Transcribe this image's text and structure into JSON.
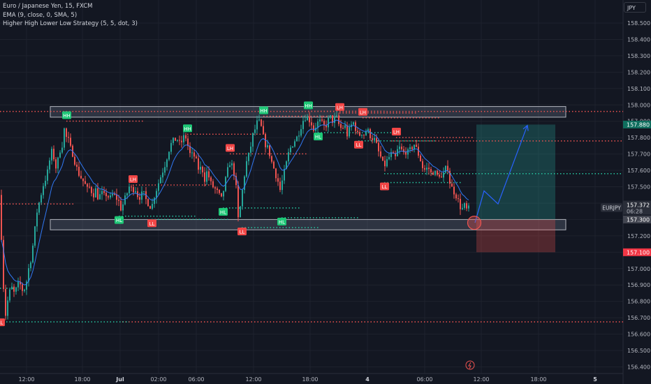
{
  "header": {
    "symbol_title": "Euro / Japanese Yen, 15, FXCM",
    "indicator_1": "EMA (9, close, 0, SMA, 5)",
    "indicator_2": "Higher High Lower Low Strategy (5, 5, dot, 3)",
    "currency_button": "JPY"
  },
  "colors": {
    "background": "#131722",
    "up_candle": "#26a69a",
    "down_candle": "#ef5350",
    "ema": "#3179f5",
    "accent_blue": "#2962ff",
    "label_green": "#1ec776",
    "label_red": "#f24646"
  },
  "chart_data": {
    "type": "candlestick",
    "symbol": "EURJPY",
    "y_axis": {
      "ticks": [
        156.4,
        156.5,
        156.6,
        156.7,
        156.8,
        156.9,
        157.0,
        157.1,
        157.2,
        157.3,
        157.4,
        157.5,
        157.6,
        157.7,
        157.8,
        157.9,
        158.0,
        158.1,
        158.2,
        158.3,
        158.4,
        158.5
      ],
      "tick_labels": [
        "156.400",
        "156.500",
        "156.600",
        "156.700",
        "156.800",
        "156.900",
        "157.000",
        "157.100",
        "157.200",
        "157.300",
        "157.400",
        "157.500",
        "157.600",
        "157.700",
        "157.800",
        "157.900",
        "158.000",
        "158.100",
        "158.200",
        "158.300",
        "158.400",
        "158.500"
      ],
      "range": [
        156.37,
        158.57
      ]
    },
    "x_axis": {
      "tick_labels": [
        "12:00",
        "18:00",
        "Jul",
        "02:00",
        "06:00",
        "12:00",
        "18:00",
        "4",
        "06:00",
        "12:00",
        "18:00",
        "5"
      ]
    },
    "price_series_path": [
      [
        0,
        157.45
      ],
      [
        2,
        157.2
      ],
      [
        4,
        156.95
      ],
      [
        6,
        156.83
      ],
      [
        8,
        156.72
      ],
      [
        10,
        156.78
      ],
      [
        13,
        156.85
      ],
      [
        17,
        156.88
      ],
      [
        21,
        156.84
      ],
      [
        25,
        156.9
      ],
      [
        29,
        156.9
      ],
      [
        33,
        156.86
      ],
      [
        37,
        156.9
      ],
      [
        41,
        157.0
      ],
      [
        45,
        157.08
      ],
      [
        49,
        157.2
      ],
      [
        53,
        157.35
      ],
      [
        57,
        157.42
      ],
      [
        61,
        157.5
      ],
      [
        65,
        157.55
      ],
      [
        69,
        157.6
      ],
      [
        73,
        157.72
      ],
      [
        77,
        157.68
      ],
      [
        81,
        157.6
      ],
      [
        85,
        157.72
      ],
      [
        89,
        157.76
      ],
      [
        92,
        157.85
      ],
      [
        95,
        157.8
      ],
      [
        98,
        157.78
      ],
      [
        101,
        157.73
      ],
      [
        105,
        157.7
      ],
      [
        109,
        157.62
      ],
      [
        113,
        157.58
      ],
      [
        117,
        157.55
      ],
      [
        121,
        157.52
      ],
      [
        125,
        157.48
      ],
      [
        129,
        157.5
      ],
      [
        133,
        157.45
      ],
      [
        137,
        157.48
      ],
      [
        141,
        157.43
      ],
      [
        145,
        157.46
      ],
      [
        149,
        157.44
      ],
      [
        153,
        157.46
      ],
      [
        157,
        157.42
      ],
      [
        161,
        157.45
      ],
      [
        165,
        157.44
      ],
      [
        169,
        157.42
      ],
      [
        173,
        157.37
      ],
      [
        177,
        157.4
      ],
      [
        181,
        157.45
      ],
      [
        185,
        157.5
      ],
      [
        189,
        157.48
      ],
      [
        193,
        157.5
      ],
      [
        197,
        157.45
      ],
      [
        201,
        157.44
      ],
      [
        205,
        157.46
      ],
      [
        209,
        157.42
      ],
      [
        213,
        157.4
      ],
      [
        217,
        157.37
      ],
      [
        221,
        157.45
      ],
      [
        225,
        157.5
      ],
      [
        229,
        157.55
      ],
      [
        233,
        157.6
      ],
      [
        237,
        157.65
      ],
      [
        241,
        157.72
      ],
      [
        245,
        157.76
      ],
      [
        249,
        157.78
      ],
      [
        253,
        157.8
      ],
      [
        257,
        157.76
      ],
      [
        261,
        157.78
      ],
      [
        265,
        157.82
      ],
      [
        269,
        157.75
      ],
      [
        273,
        157.68
      ],
      [
        277,
        157.7
      ],
      [
        281,
        157.65
      ],
      [
        285,
        157.6
      ],
      [
        289,
        157.62
      ],
      [
        293,
        157.55
      ],
      [
        297,
        157.6
      ],
      [
        301,
        157.52
      ],
      [
        305,
        157.5
      ],
      [
        309,
        157.48
      ],
      [
        313,
        157.45
      ],
      [
        317,
        157.42
      ],
      [
        321,
        157.5
      ],
      [
        325,
        157.58
      ],
      [
        329,
        157.65
      ],
      [
        333,
        157.62
      ],
      [
        337,
        157.55
      ],
      [
        341,
        157.3
      ],
      [
        345,
        157.4
      ],
      [
        349,
        157.55
      ],
      [
        353,
        157.65
      ],
      [
        357,
        157.7
      ],
      [
        361,
        157.8
      ],
      [
        365,
        157.85
      ],
      [
        369,
        157.9
      ],
      [
        373,
        157.88
      ],
      [
        377,
        157.8
      ],
      [
        381,
        157.75
      ],
      [
        385,
        157.72
      ],
      [
        389,
        157.65
      ],
      [
        393,
        157.6
      ],
      [
        397,
        157.55
      ],
      [
        401,
        157.48
      ],
      [
        405,
        157.55
      ],
      [
        409,
        157.62
      ],
      [
        413,
        157.7
      ],
      [
        417,
        157.75
      ],
      [
        421,
        157.78
      ],
      [
        425,
        157.8
      ],
      [
        429,
        157.85
      ],
      [
        433,
        157.9
      ],
      [
        437,
        157.93
      ],
      [
        441,
        157.92
      ],
      [
        445,
        157.9
      ],
      [
        449,
        157.85
      ],
      [
        453,
        157.88
      ],
      [
        457,
        157.9
      ],
      [
        461,
        157.88
      ],
      [
        465,
        157.86
      ],
      [
        469,
        157.9
      ],
      [
        473,
        157.92
      ],
      [
        477,
        157.9
      ],
      [
        481,
        157.93
      ],
      [
        485,
        157.88
      ],
      [
        489,
        157.85
      ],
      [
        493,
        157.88
      ],
      [
        497,
        157.82
      ],
      [
        501,
        157.85
      ],
      [
        505,
        157.9
      ],
      [
        509,
        157.86
      ],
      [
        513,
        157.8
      ],
      [
        517,
        157.84
      ],
      [
        521,
        157.82
      ],
      [
        525,
        157.85
      ],
      [
        529,
        157.82
      ],
      [
        533,
        157.8
      ],
      [
        537,
        157.78
      ],
      [
        541,
        157.72
      ],
      [
        545,
        157.68
      ],
      [
        549,
        157.62
      ],
      [
        553,
        157.65
      ],
      [
        557,
        157.68
      ],
      [
        561,
        157.7
      ],
      [
        565,
        157.66
      ],
      [
        569,
        157.72
      ],
      [
        573,
        157.74
      ],
      [
        577,
        157.7
      ],
      [
        581,
        157.72
      ],
      [
        585,
        157.7
      ],
      [
        589,
        157.74
      ],
      [
        593,
        157.76
      ],
      [
        597,
        157.72
      ],
      [
        601,
        157.68
      ],
      [
        605,
        157.62
      ],
      [
        609,
        157.6
      ],
      [
        613,
        157.62
      ],
      [
        617,
        157.58
      ],
      [
        621,
        157.6
      ],
      [
        625,
        157.56
      ],
      [
        629,
        157.58
      ],
      [
        633,
        157.54
      ],
      [
        637,
        157.6
      ],
      [
        641,
        157.62
      ],
      [
        645,
        157.5
      ],
      [
        649,
        157.48
      ],
      [
        653,
        157.45
      ],
      [
        657,
        157.4
      ],
      [
        661,
        157.36
      ],
      [
        665,
        157.38
      ],
      [
        669,
        157.35
      ],
      [
        673,
        157.372
      ]
    ],
    "hhll_labels": [
      {
        "text": "LL",
        "price": 156.67,
        "xi": 0,
        "type": "low"
      },
      {
        "text": "HH",
        "price": 157.935,
        "xi": 95,
        "type": "high"
      },
      {
        "text": "HL",
        "price": 157.295,
        "xi": 170,
        "type": "low"
      },
      {
        "text": "LH",
        "price": 157.545,
        "xi": 190,
        "type": "high"
      },
      {
        "text": "LL",
        "price": 157.275,
        "xi": 217,
        "type": "low"
      },
      {
        "text": "HH",
        "price": 157.855,
        "xi": 268,
        "type": "high"
      },
      {
        "text": "LH",
        "price": 157.735,
        "xi": 329,
        "type": "high"
      },
      {
        "text": "HL",
        "price": 157.345,
        "xi": 319,
        "type": "low"
      },
      {
        "text": "LL",
        "price": 157.225,
        "xi": 346,
        "type": "low"
      },
      {
        "text": "HH",
        "price": 157.965,
        "xi": 377,
        "type": "high"
      },
      {
        "text": "HL",
        "price": 157.285,
        "xi": 403,
        "type": "low"
      },
      {
        "text": "HH",
        "price": 157.995,
        "xi": 441,
        "type": "high"
      },
      {
        "text": "LH",
        "price": 157.985,
        "xi": 486,
        "type": "high"
      },
      {
        "text": "HL",
        "price": 157.805,
        "xi": 455,
        "type": "low"
      },
      {
        "text": "LH",
        "price": 157.955,
        "xi": 519,
        "type": "high"
      },
      {
        "text": "LL",
        "price": 157.755,
        "xi": 513,
        "type": "low"
      },
      {
        "text": "LH",
        "price": 157.835,
        "xi": 567,
        "type": "high"
      },
      {
        "text": "LL",
        "price": 157.5,
        "xi": 550,
        "type": "low"
      }
    ],
    "dotted_levels": [
      {
        "price": 157.96,
        "xi_from": 0,
        "xi_to": 892,
        "color": "red"
      },
      {
        "price": 157.395,
        "xi_from": 0,
        "xi_to": 108,
        "color": "red"
      },
      {
        "price": 156.675,
        "xi_from": 175,
        "xi_to": 892,
        "color": "red"
      },
      {
        "price": 157.78,
        "xi_from": 560,
        "xi_to": 892,
        "color": "red"
      },
      {
        "price": 157.58,
        "xi_from": 550,
        "xi_to": 892,
        "color": "green"
      },
      {
        "price": 156.675,
        "xi_from": 0,
        "xi_to": 185,
        "color": "green"
      },
      {
        "price": 156.88,
        "xi_from": 0,
        "xi_to": 25,
        "color": "green"
      }
    ],
    "zones": [
      {
        "label": "resistance-zone",
        "price_top": 157.99,
        "price_bottom": 157.925,
        "xi_from": 72,
        "xi_to": 810
      },
      {
        "label": "support-zone",
        "price_top": 157.3,
        "price_bottom": 157.237,
        "xi_from": 72,
        "xi_to": 810
      }
    ],
    "position": {
      "entry": 157.3,
      "target": 157.88,
      "stop": 157.1,
      "xi_from": 682,
      "xi_to": 795,
      "entry_label": "157.300",
      "target_label": "157.880",
      "stop_label": "157.100"
    },
    "projection_path": [
      [
        680,
        157.28
      ],
      [
        693,
        157.475
      ],
      [
        713,
        157.395
      ],
      [
        755,
        157.875
      ]
    ],
    "current_price": {
      "symbol": "EURJPY",
      "price": 157.372,
      "price_label": "157.372",
      "countdown": "06:28"
    }
  }
}
